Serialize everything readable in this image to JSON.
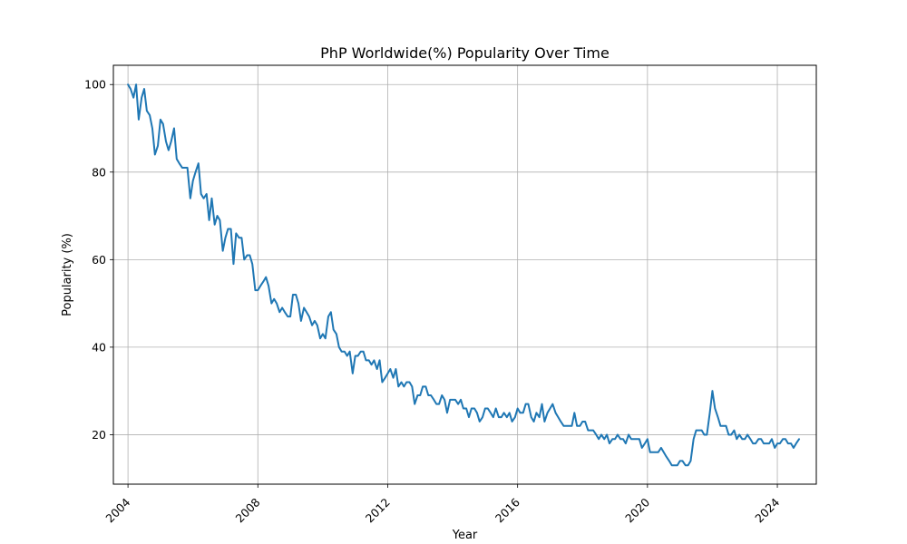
{
  "chart_data": {
    "type": "line",
    "title": "PhP Worldwide(%) Popularity Over Time",
    "xlabel": "Year",
    "ylabel": "Popularity (%)",
    "xlim": [
      2003.55,
      2025.2
    ],
    "ylim": [
      8.7,
      104.4
    ],
    "xticks": [
      2004,
      2008,
      2012,
      2016,
      2020,
      2024
    ],
    "yticks": [
      20,
      40,
      60,
      80,
      100
    ],
    "grid": true,
    "line_color": "#1f77b4",
    "series": [
      {
        "x": [
          2004.0,
          2004.08,
          2004.17,
          2004.25,
          2004.33,
          2004.42,
          2004.5,
          2004.58,
          2004.67,
          2004.75,
          2004.83,
          2004.92,
          2005.0,
          2005.08,
          2005.17,
          2005.25,
          2005.33,
          2005.42,
          2005.5,
          2005.58,
          2005.67,
          2005.75,
          2005.83,
          2005.92,
          2006.0,
          2006.08,
          2006.17,
          2006.25,
          2006.33,
          2006.42,
          2006.5,
          2006.58,
          2006.67,
          2006.75,
          2006.83,
          2006.92,
          2007.0,
          2007.08,
          2007.17,
          2007.25,
          2007.33,
          2007.42,
          2007.5,
          2007.58,
          2007.67,
          2007.75,
          2007.83,
          2007.92,
          2008.0,
          2008.08,
          2008.17,
          2008.25,
          2008.33,
          2008.42,
          2008.5,
          2008.58,
          2008.67,
          2008.75,
          2008.83,
          2008.92,
          2009.0,
          2009.08,
          2009.17,
          2009.25,
          2009.33,
          2009.42,
          2009.5,
          2009.58,
          2009.67,
          2009.75,
          2009.83,
          2009.92,
          2010.0,
          2010.08,
          2010.17,
          2010.25,
          2010.33,
          2010.42,
          2010.5,
          2010.58,
          2010.67,
          2010.75,
          2010.83,
          2010.92,
          2011.0,
          2011.08,
          2011.17,
          2011.25,
          2011.33,
          2011.42,
          2011.5,
          2011.58,
          2011.67,
          2011.75,
          2011.83,
          2011.92,
          2012.0,
          2012.08,
          2012.17,
          2012.25,
          2012.33,
          2012.42,
          2012.5,
          2012.58,
          2012.67,
          2012.75,
          2012.83,
          2012.92,
          2013.0,
          2013.08,
          2013.17,
          2013.25,
          2013.33,
          2013.42,
          2013.5,
          2013.58,
          2013.67,
          2013.75,
          2013.83,
          2013.92,
          2014.0,
          2014.08,
          2014.17,
          2014.25,
          2014.33,
          2014.42,
          2014.5,
          2014.58,
          2014.67,
          2014.75,
          2014.83,
          2014.92,
          2015.0,
          2015.08,
          2015.17,
          2015.25,
          2015.33,
          2015.42,
          2015.5,
          2015.58,
          2015.67,
          2015.75,
          2015.83,
          2015.92,
          2016.0,
          2016.08,
          2016.17,
          2016.25,
          2016.33,
          2016.42,
          2016.5,
          2016.58,
          2016.67,
          2016.75,
          2016.83,
          2016.92,
          2017.0,
          2017.08,
          2017.17,
          2017.25,
          2017.33,
          2017.42,
          2017.5,
          2017.58,
          2017.67,
          2017.75,
          2017.83,
          2017.92,
          2018.0,
          2018.08,
          2018.17,
          2018.25,
          2018.33,
          2018.42,
          2018.5,
          2018.58,
          2018.67,
          2018.75,
          2018.83,
          2018.92,
          2019.0,
          2019.08,
          2019.17,
          2019.25,
          2019.33,
          2019.42,
          2019.5,
          2019.58,
          2019.67,
          2019.75,
          2019.83,
          2019.92,
          2020.0,
          2020.08,
          2020.17,
          2020.25,
          2020.33,
          2020.42,
          2020.5,
          2020.58,
          2020.67,
          2020.75,
          2020.83,
          2020.92,
          2021.0,
          2021.08,
          2021.17,
          2021.25,
          2021.33,
          2021.42,
          2021.5,
          2021.58,
          2021.67,
          2021.75,
          2021.83,
          2021.92,
          2022.0,
          2022.08,
          2022.17,
          2022.25,
          2022.33,
          2022.42,
          2022.5,
          2022.58,
          2022.67,
          2022.75,
          2022.83,
          2022.92,
          2023.0,
          2023.08,
          2023.17,
          2023.25,
          2023.33,
          2023.42,
          2023.5,
          2023.58,
          2023.67,
          2023.75,
          2023.83,
          2023.92,
          2024.0,
          2024.08,
          2024.17,
          2024.25,
          2024.33,
          2024.42,
          2024.5,
          2024.58,
          2024.67
        ],
        "y": [
          100,
          99,
          97,
          100,
          92,
          97,
          99,
          94,
          93,
          90,
          84,
          86,
          92,
          91,
          87,
          85,
          87,
          90,
          83,
          82,
          81,
          81,
          81,
          74,
          78,
          80,
          82,
          75,
          74,
          75,
          69,
          74,
          68,
          70,
          69,
          62,
          65,
          67,
          67,
          59,
          66,
          65,
          65,
          60,
          61,
          61,
          59,
          53,
          53,
          54,
          55,
          56,
          54,
          50,
          51,
          50,
          48,
          49,
          48,
          47,
          47,
          52,
          52,
          50,
          46,
          49,
          48,
          47,
          45,
          46,
          45,
          42,
          43,
          42,
          47,
          48,
          44,
          43,
          40,
          39,
          39,
          38,
          39,
          34,
          38,
          38,
          39,
          39,
          37,
          37,
          36,
          37,
          35,
          37,
          32,
          33,
          34,
          35,
          33,
          35,
          31,
          32,
          31,
          32,
          32,
          31,
          27,
          29,
          29,
          31,
          31,
          29,
          29,
          28,
          27,
          27,
          29,
          28,
          25,
          28,
          28,
          28,
          27,
          28,
          26,
          26,
          24,
          26,
          26,
          25,
          23,
          24,
          26,
          26,
          25,
          24,
          26,
          24,
          24,
          25,
          24,
          25,
          23,
          24,
          26,
          25,
          25,
          27,
          27,
          24,
          23,
          25,
          24,
          27,
          23,
          25,
          26,
          27,
          25,
          24,
          23,
          22,
          22,
          22,
          22,
          25,
          22,
          22,
          23,
          23,
          21,
          21,
          21,
          20,
          19,
          20,
          19,
          20,
          18,
          19,
          19,
          20,
          19,
          19,
          18,
          20,
          19,
          19,
          19,
          19,
          17,
          18,
          19,
          16,
          16,
          16,
          16,
          17,
          16,
          15,
          14,
          13,
          13,
          13,
          14,
          14,
          13,
          13,
          14,
          19,
          21,
          21,
          21,
          20,
          20,
          25,
          30,
          26,
          24,
          22,
          22,
          22,
          20,
          20,
          21,
          19,
          20,
          19,
          19,
          20,
          19,
          18,
          18,
          19,
          19,
          18,
          18,
          18,
          19,
          17,
          18,
          18,
          19,
          19,
          18,
          18,
          17,
          18,
          19
        ]
      }
    ]
  }
}
